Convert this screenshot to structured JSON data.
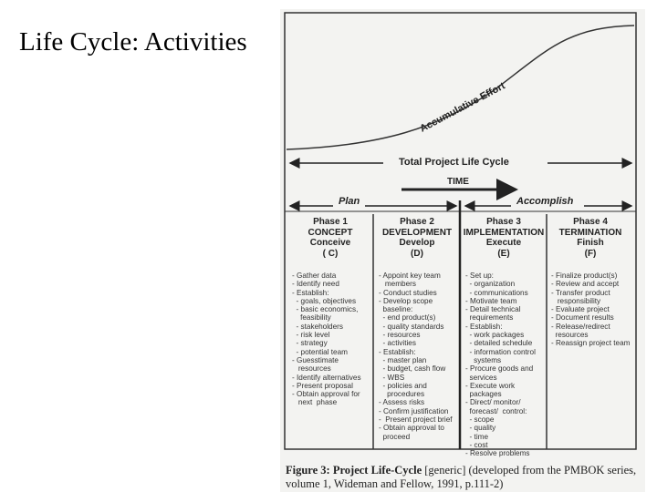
{
  "slide": {
    "title": "Life Cycle: Activities"
  },
  "figure": {
    "curve_label": "Accumulative Effort",
    "total_label": "Total Project Life Cycle",
    "time_label": "TIME",
    "plan_label": "Plan",
    "accomplish_label": "Accomplish",
    "phases": [
      {
        "number": "Phase 1",
        "name": "CONCEPT",
        "verb": "Conceive",
        "code": "( C)",
        "activities": "- Gather data\n- Identify need\n- Establish:\n  - goals, objectives\n  - basic economics,\n    feasibility\n  - stakeholders\n  - risk level\n  - strategy\n  - potential team\n- Guesstimate\n   resources\n- Identify alternatives\n- Present proposal\n- Obtain approval for\n   next  phase"
      },
      {
        "number": "Phase 2",
        "name": "DEVELOPMENT",
        "verb": "Develop",
        "code": "(D)",
        "activities": "- Appoint key team\n   members\n- Conduct studies\n- Develop scope\n  baseline:\n  - end product(s)\n  - quality standards\n  - resources\n  - activities\n- Establish:\n  - master plan\n  - budget, cash flow\n  - WBS\n  - policies and\n    procedures\n- Assess risks\n- Confirm justification\n-  Present project brief\n- Obtain approval to\n  proceed"
      },
      {
        "number": "Phase 3",
        "name": "IMPLEMENTATION",
        "verb": "Execute",
        "code": "(E)",
        "activities": "- Set up:\n  - organization\n  - communications\n- Motivate team\n- Detail technical\n  requirements\n- Establish:\n  - work packages\n  - detailed schedule\n  - information control\n    systems\n- Procure goods and\n  services\n- Execute work\n  packages\n- Direct/ monitor/\n  forecast/  control:\n  - scope\n  - quality\n  - time\n  - cost\n- Resolve problems"
      },
      {
        "number": "Phase 4",
        "name": "TERMINATION",
        "verb": "Finish",
        "code": "(F)",
        "activities": "- Finalize product(s)\n- Review and accept\n- Transfer product\n   responsibility\n- Evaluate project\n- Document results\n- Release/redirect\n  resources\n- Reassign project team"
      }
    ],
    "caption_bold": "Figure 3: Project Life-Cycle",
    "caption_rest": " [generic] (developed from the PMBOK series, volume 1, Wideman and Fellow, 1991, p.111-2)"
  }
}
